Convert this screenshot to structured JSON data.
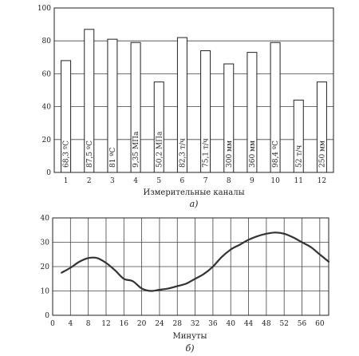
{
  "chart_data": [
    {
      "type": "bar",
      "panel_label": "а)",
      "xlabel": "Измерительные каналы",
      "ylabel": "",
      "ylim": [
        0,
        100
      ],
      "yticks": [
        0,
        20,
        40,
        60,
        80,
        100
      ],
      "grid": true,
      "categories": [
        "1",
        "2",
        "3",
        "4",
        "5",
        "6",
        "7",
        "8",
        "9",
        "10",
        "11",
        "12"
      ],
      "values": [
        68,
        87,
        81,
        79,
        55,
        82,
        74,
        66,
        73,
        79,
        44,
        55
      ],
      "data_labels": [
        "68,3 ºС",
        "87,5 ºС",
        "81 ºС",
        "9,35 МПа",
        "50,2 МПа",
        "82,3 т/ч",
        "75,1 т/ч",
        "300 мм",
        "360 мм",
        "98,4 ºС",
        "52 т/ч",
        "250 мм"
      ]
    },
    {
      "type": "line",
      "panel_label": "б)",
      "xlabel": "Минуты",
      "ylabel": "",
      "xlim": [
        0,
        62
      ],
      "ylim": [
        0,
        40
      ],
      "xticks": [
        0,
        4,
        8,
        12,
        16,
        20,
        24,
        28,
        32,
        36,
        40,
        44,
        48,
        52,
        56,
        60
      ],
      "xtick_labels": [
        "0",
        "4",
        "8",
        "12",
        "16",
        "20",
        "24",
        "28",
        "32",
        "36",
        "40",
        "44",
        "48",
        "52",
        "56",
        "60"
      ],
      "yticks": [
        0,
        10,
        20,
        30,
        40
      ],
      "grid": true,
      "x": [
        2,
        4,
        6,
        8,
        10,
        12,
        14,
        16,
        18,
        20,
        22,
        24,
        26,
        28,
        30,
        32,
        34,
        36,
        38,
        40,
        42,
        44,
        46,
        48,
        50,
        52,
        54,
        56,
        58,
        60,
        62
      ],
      "y": [
        17.5,
        19.5,
        22,
        23.5,
        23.5,
        21.5,
        18.5,
        15,
        14,
        11,
        10,
        10.5,
        11,
        12,
        13,
        15,
        17,
        20,
        24,
        27,
        29,
        31,
        32.5,
        33.5,
        34,
        33.5,
        32,
        30,
        28,
        25,
        22
      ]
    }
  ]
}
